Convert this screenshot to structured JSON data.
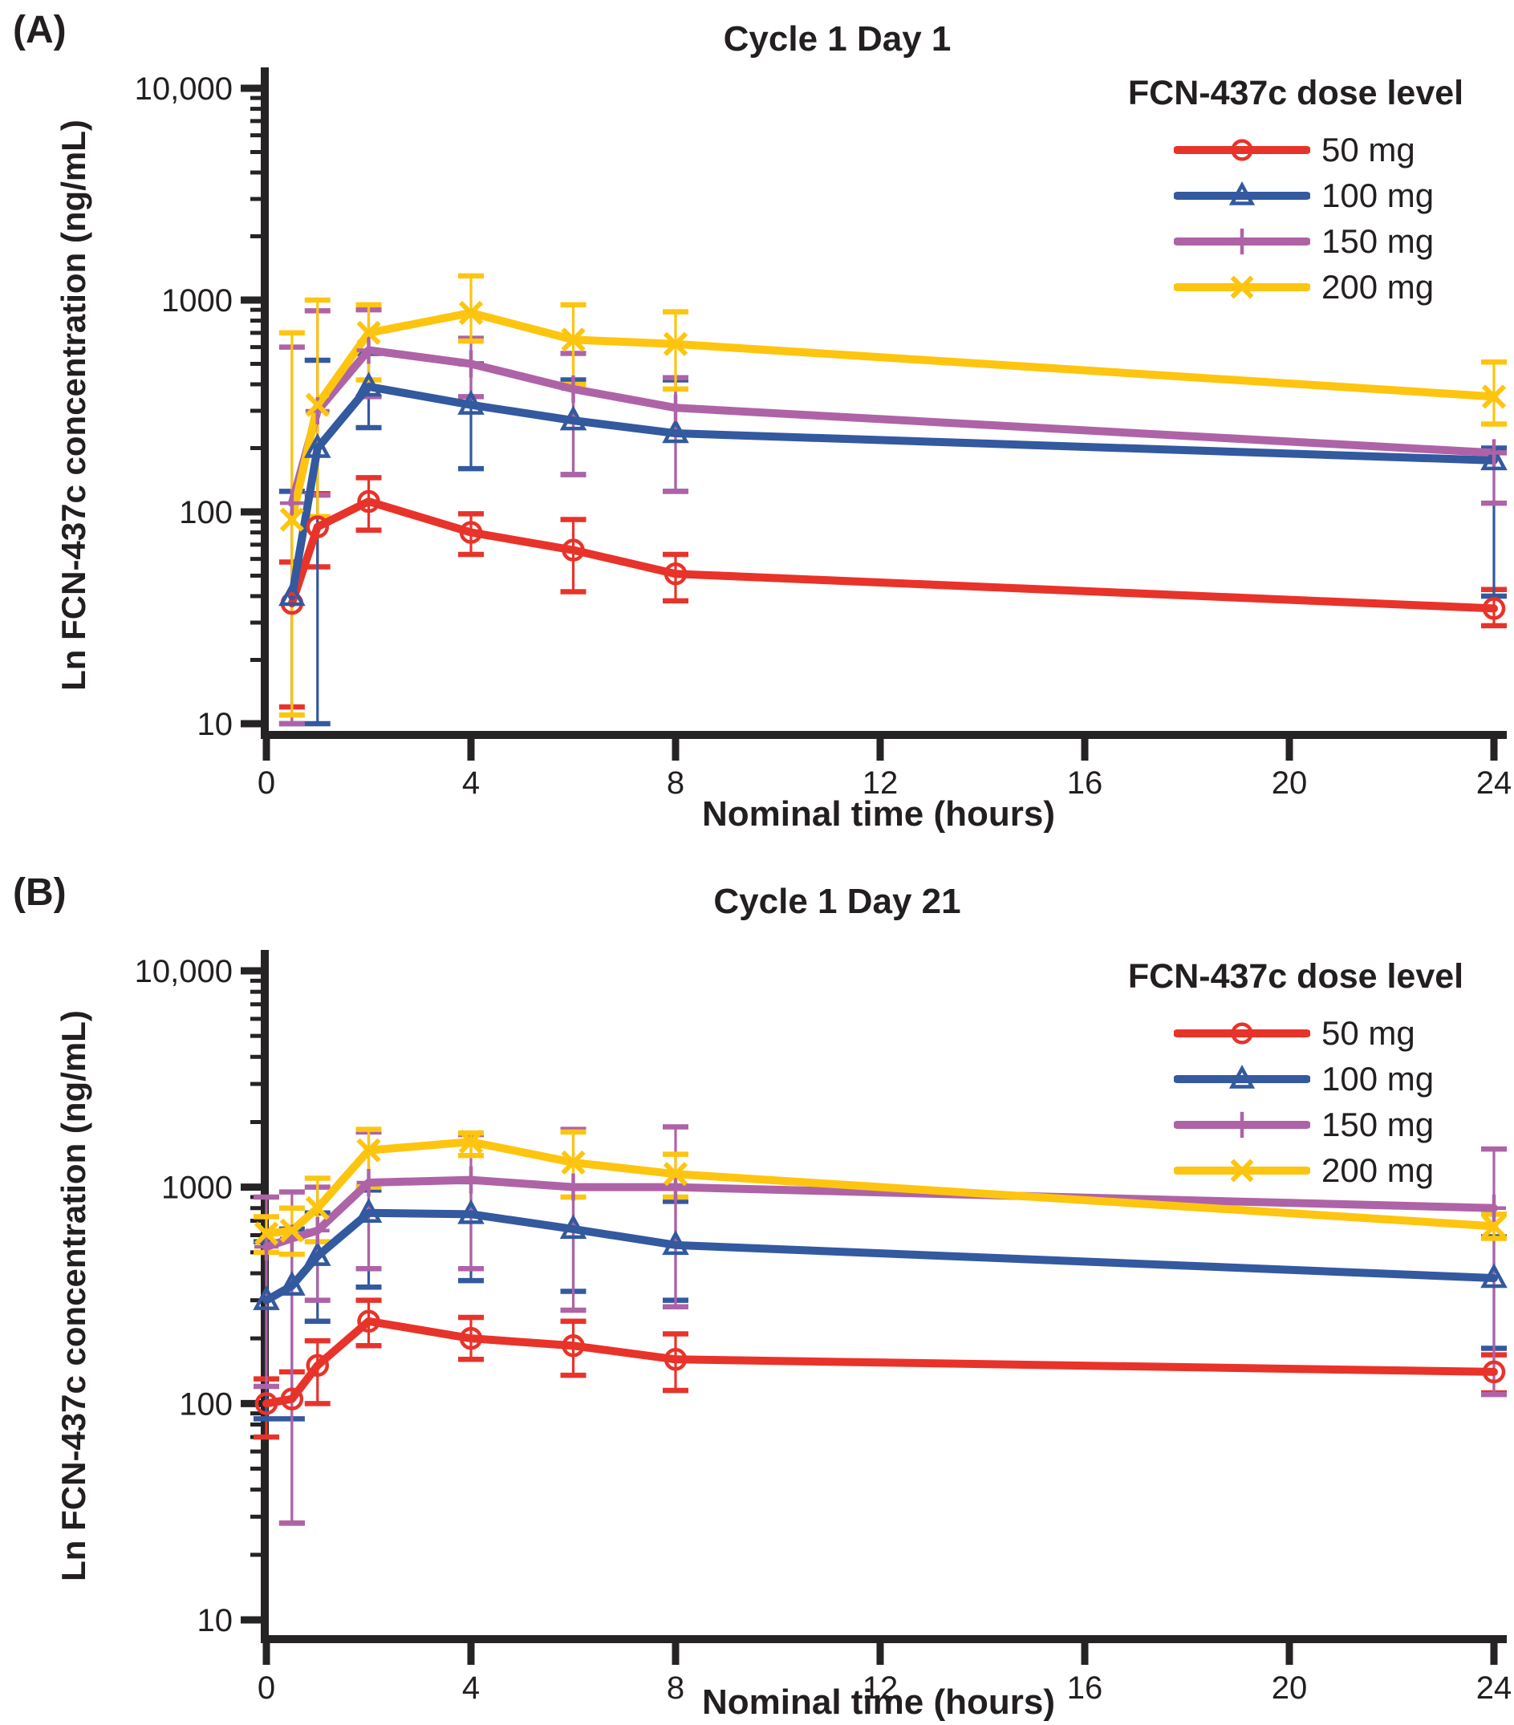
{
  "panel_a": {
    "letter": "(A)",
    "title": "Cycle 1 Day 1",
    "y_axis_label": "Ln FCN-437c concentration (ng/mL)",
    "x_axis_label": "Nominal time (hours)"
  },
  "panel_b": {
    "letter": "(B)",
    "title": "Cycle 1 Day 21",
    "y_axis_label": "Ln FCN-437c concentration (ng/mL)",
    "x_axis_label": "Nominal time (hours)"
  },
  "axis": {
    "y_tick_labels": [
      "10,000",
      "1000",
      "100",
      "10"
    ],
    "x_ticks": [
      0,
      4,
      8,
      12,
      16,
      20,
      24
    ],
    "xlim": [
      0,
      24
    ],
    "ylim": [
      10,
      10000
    ],
    "y_scale": "log"
  },
  "legend": {
    "header": "FCN-437c dose level",
    "items": [
      {
        "label": "50 mg"
      },
      {
        "label": "100 mg"
      },
      {
        "label": "150 mg"
      },
      {
        "label": "200 mg"
      }
    ]
  },
  "colors": {
    "red_50mg": "#e8332a",
    "blue_100mg": "#33599f",
    "purple_150mg": "#ae63a7",
    "yellow_200mg": "#fdc50f",
    "axis": "#262324",
    "text": "#231f20"
  },
  "chart_data": [
    {
      "type": "line",
      "title": "Cycle 1 Day 1",
      "xlabel": "Nominal time (hours)",
      "ylabel": "Ln FCN-437c concentration (ng/mL)",
      "x_units": "hours",
      "y_units": "ng/mL",
      "y_scale": "log",
      "ylim": [
        10,
        10000
      ],
      "xlim": [
        0,
        24
      ],
      "legend_position": "top-right",
      "point_format": [
        "time_h",
        "mean",
        "err_low",
        "err_high"
      ],
      "series": [
        {
          "name": "50 mg",
          "color": "red_50mg",
          "marker": "circle",
          "points": [
            [
              0.5,
              37,
              12,
              58
            ],
            [
              1,
              85,
              55,
              122
            ],
            [
              2,
              112,
              82,
              145
            ],
            [
              4,
              80,
              63,
              98
            ],
            [
              6,
              66,
              42,
              92
            ],
            [
              8,
              51,
              38,
              63
            ],
            [
              24,
              35,
              29,
              43
            ]
          ]
        },
        {
          "name": "100 mg",
          "color": "blue_100mg",
          "marker": "triangle",
          "points": [
            [
              0.5,
              40,
              10,
              125
            ],
            [
              1,
              200,
              10,
              520
            ],
            [
              2,
              390,
              250,
              560
            ],
            [
              4,
              320,
              160,
              500
            ],
            [
              6,
              270,
              150,
              420
            ],
            [
              8,
              235,
              125,
              420
            ],
            [
              24,
              175,
              40,
              200
            ]
          ]
        },
        {
          "name": "150 mg",
          "color": "purple_150mg",
          "marker": "plus",
          "points": [
            [
              0.5,
              110,
              10,
              600
            ],
            [
              1,
              300,
              120,
              890
            ],
            [
              2,
              580,
              350,
              900
            ],
            [
              4,
              500,
              350,
              660
            ],
            [
              6,
              380,
              150,
              560
            ],
            [
              8,
              310,
              125,
              430
            ],
            [
              24,
              190,
              110,
              190
            ]
          ]
        },
        {
          "name": "200 mg",
          "color": "yellow_200mg",
          "marker": "x",
          "points": [
            [
              0.5,
              92,
              11,
              700
            ],
            [
              1,
              320,
              95,
              1000
            ],
            [
              2,
              700,
              420,
              950
            ],
            [
              4,
              870,
              640,
              1300
            ],
            [
              6,
              650,
              400,
              950
            ],
            [
              8,
              620,
              380,
              880
            ],
            [
              24,
              350,
              260,
              510
            ]
          ]
        }
      ]
    },
    {
      "type": "line",
      "title": "Cycle 1 Day 21",
      "xlabel": "Nominal time (hours)",
      "ylabel": "Ln FCN-437c concentration (ng/mL)",
      "x_units": "hours",
      "y_units": "ng/mL",
      "y_scale": "log",
      "ylim": [
        10,
        10000
      ],
      "xlim": [
        0,
        24
      ],
      "legend_position": "top-right",
      "point_format": [
        "time_h",
        "mean",
        "err_low",
        "err_high"
      ],
      "series": [
        {
          "name": "50 mg",
          "color": "red_50mg",
          "marker": "circle",
          "points": [
            [
              0,
              100,
              70,
              130
            ],
            [
              0.5,
              105,
              28,
              140
            ],
            [
              1,
              150,
              100,
              195
            ],
            [
              2,
              240,
              185,
              300
            ],
            [
              4,
              200,
              160,
              250
            ],
            [
              6,
              185,
              135,
              240
            ],
            [
              8,
              160,
              115,
              210
            ],
            [
              24,
              140,
              112,
              168
            ]
          ]
        },
        {
          "name": "100 mg",
          "color": "blue_100mg",
          "marker": "triangle",
          "points": [
            [
              0,
              300,
              85,
              560
            ],
            [
              0.5,
              350,
              85,
              640
            ],
            [
              1,
              480,
              240,
              760
            ],
            [
              2,
              760,
              345,
              970
            ],
            [
              4,
              750,
              370,
              1060
            ],
            [
              6,
              640,
              330,
              1000
            ],
            [
              8,
              540,
              300,
              860
            ],
            [
              24,
              380,
              180,
              590
            ]
          ]
        },
        {
          "name": "150 mg",
          "color": "purple_150mg",
          "marker": "plus",
          "points": [
            [
              0,
              530,
              120,
              900
            ],
            [
              0.5,
              580,
              28,
              950
            ],
            [
              1,
              630,
              300,
              1000
            ],
            [
              2,
              1050,
              420,
              1800
            ],
            [
              4,
              1080,
              420,
              1750
            ],
            [
              6,
              1000,
              270,
              1850
            ],
            [
              8,
              1000,
              280,
              1900
            ],
            [
              24,
              800,
              110,
              1500
            ]
          ]
        },
        {
          "name": "200 mg",
          "color": "yellow_200mg",
          "marker": "x",
          "points": [
            [
              0,
              610,
              500,
              730
            ],
            [
              0.5,
              630,
              490,
              800
            ],
            [
              1,
              800,
              560,
              1100
            ],
            [
              2,
              1480,
              1000,
              1850
            ],
            [
              4,
              1620,
              1400,
              1780
            ],
            [
              6,
              1300,
              900,
              1800
            ],
            [
              8,
              1150,
              900,
              1420
            ],
            [
              24,
              660,
              580,
              750
            ]
          ]
        }
      ]
    }
  ]
}
